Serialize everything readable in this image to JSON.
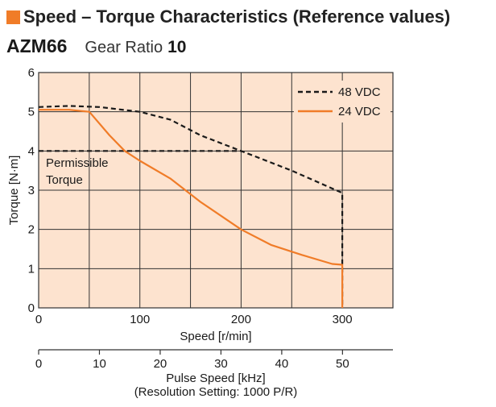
{
  "header": {
    "title": "Speed – Torque Characteristics (Reference values)",
    "model": "AZM66",
    "gear_label": "Gear Ratio",
    "gear_value": "10"
  },
  "colors": {
    "accent": "#f07c28",
    "plot_background": "#fde3cf",
    "series_48": "#1a1a1a",
    "series_24": "#f07c28"
  },
  "chart_data": {
    "type": "line",
    "xlabel": "Speed [r/min]",
    "ylabel": "Torque [N·m]",
    "xlim": [
      0,
      350
    ],
    "ylim": [
      0,
      6
    ],
    "x_ticks": [
      "0",
      "100",
      "200",
      "300"
    ],
    "x_tick_values": [
      0,
      100,
      200,
      300
    ],
    "y_ticks": [
      "0",
      "1",
      "2",
      "3",
      "4",
      "5",
      "6"
    ],
    "y_tick_values": [
      0,
      1,
      2,
      3,
      4,
      5,
      6
    ],
    "grid": true,
    "legend_position": "top-right",
    "secondary_axis": {
      "label_line1": "Pulse Speed [kHz]",
      "label_line2": "(Resolution Setting: 1000 P/R)",
      "ticks": [
        "0",
        "10",
        "20",
        "30",
        "40",
        "50"
      ],
      "tick_values": [
        0,
        10,
        20,
        30,
        40,
        50
      ],
      "lim": [
        0,
        58.3
      ]
    },
    "permissible_torque": {
      "label_line1": "Permissible",
      "label_line2": "Torque",
      "value": 4,
      "x_range": [
        0,
        200
      ]
    },
    "series": [
      {
        "name": "48 VDC",
        "style": "dashed",
        "x": [
          0,
          30,
          60,
          100,
          130,
          160,
          200,
          250,
          300,
          300
        ],
        "y": [
          5.12,
          5.15,
          5.12,
          5.0,
          4.8,
          4.4,
          4.0,
          3.5,
          2.93,
          0
        ]
      },
      {
        "name": "24 VDC",
        "style": "solid",
        "x": [
          0,
          30,
          50,
          70,
          85,
          100,
          130,
          160,
          200,
          230,
          260,
          290,
          300,
          300
        ],
        "y": [
          5.05,
          5.05,
          5.0,
          4.4,
          4.0,
          3.75,
          3.3,
          2.7,
          2.0,
          1.6,
          1.35,
          1.12,
          1.1,
          0
        ]
      }
    ]
  }
}
